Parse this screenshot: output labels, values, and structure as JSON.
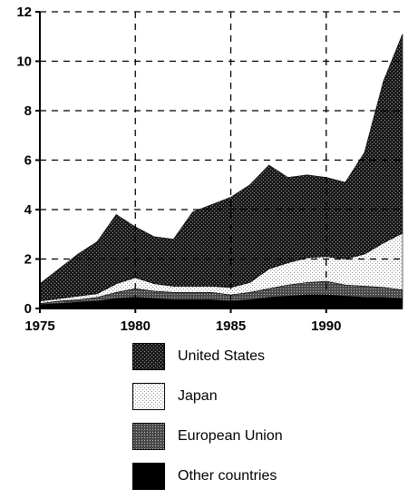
{
  "chart_data": {
    "type": "area",
    "stacked": true,
    "x": [
      1975,
      1976,
      1977,
      1978,
      1979,
      1980,
      1981,
      1982,
      1983,
      1984,
      1985,
      1986,
      1987,
      1988,
      1989,
      1990,
      1991,
      1992,
      1993,
      1994
    ],
    "series": [
      {
        "name": "Other countries",
        "values": [
          0.15,
          0.2,
          0.25,
          0.3,
          0.4,
          0.45,
          0.4,
          0.35,
          0.35,
          0.35,
          0.3,
          0.35,
          0.45,
          0.5,
          0.55,
          0.55,
          0.5,
          0.45,
          0.45,
          0.4
        ]
      },
      {
        "name": "European Union",
        "values": [
          0.05,
          0.1,
          0.1,
          0.15,
          0.25,
          0.35,
          0.3,
          0.3,
          0.3,
          0.3,
          0.25,
          0.3,
          0.35,
          0.45,
          0.5,
          0.55,
          0.45,
          0.45,
          0.4,
          0.35
        ]
      },
      {
        "name": "Japan",
        "values": [
          0.1,
          0.1,
          0.15,
          0.15,
          0.35,
          0.45,
          0.3,
          0.25,
          0.25,
          0.25,
          0.3,
          0.4,
          0.8,
          0.9,
          1.0,
          1.0,
          1.05,
          1.3,
          1.8,
          2.3
        ]
      },
      {
        "name": "United States",
        "values": [
          0.7,
          1.2,
          1.7,
          2.1,
          2.8,
          2.05,
          1.9,
          1.9,
          3.0,
          3.3,
          3.65,
          3.95,
          4.2,
          3.45,
          3.35,
          3.2,
          3.1,
          4.1,
          6.55,
          8.05
        ]
      }
    ],
    "xlim": [
      1975,
      1994
    ],
    "ylim": [
      0,
      12
    ],
    "x_ticks": [
      1975,
      1980,
      1985,
      1990
    ],
    "y_ticks": [
      0,
      2,
      4,
      6,
      8,
      10,
      12
    ],
    "grid": true,
    "legend_position": "bottom",
    "colors": {
      "United States": "#3a3a3a",
      "Japan": "#e8e8e8",
      "European Union": "#6a6a6a",
      "Other countries": "#000000"
    }
  },
  "legend": [
    {
      "label": "United States",
      "pattern": "us"
    },
    {
      "label": "Japan",
      "pattern": "jp"
    },
    {
      "label": "European Union",
      "pattern": "eu"
    },
    {
      "label": "Other countries",
      "pattern": "oc"
    }
  ]
}
